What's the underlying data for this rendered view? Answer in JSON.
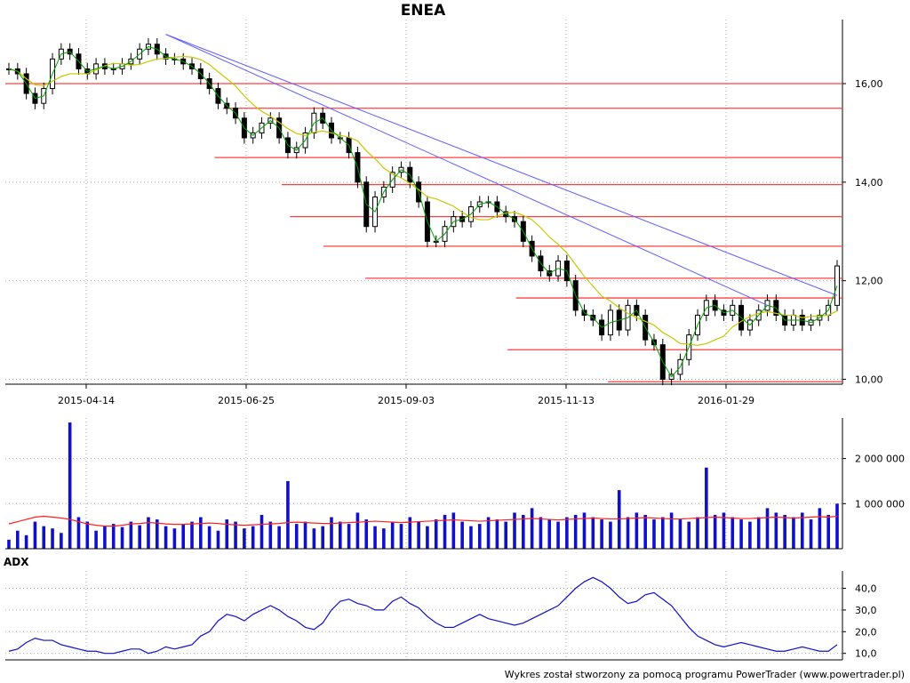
{
  "title": "ENEA",
  "footer": "Wykres został stworzony za pomocą programu PowerTrader (www.powertrader.pl)",
  "colors": {
    "candle": "#000000",
    "ma": "#c8c800",
    "ma_short": "#00a000",
    "trendline": "#6060ff",
    "level": "#ff4040",
    "volume": "#1010c8",
    "volume_ma": "#ff2020",
    "adx": "#1010c8",
    "grid": "#b0b0b0"
  },
  "chart_data": [
    {
      "type": "line",
      "name": "price",
      "title": "ENEA",
      "x_ticks": [
        "2015-04-14",
        "2015-06-25",
        "2015-09-03",
        "2015-11-13",
        "2016-01-29"
      ],
      "y_ticks": [
        "16,00",
        "14,00",
        "12,00",
        "10,00"
      ],
      "ylim": [
        9.9,
        17.3
      ],
      "grid": true,
      "series": [
        {
          "values": [
            16.3,
            16.2,
            15.8,
            15.6,
            15.9,
            16.5,
            16.7,
            16.6,
            16.3,
            16.2,
            16.4,
            16.3,
            16.3,
            16.4,
            16.5,
            16.7,
            16.8,
            16.6,
            16.5,
            16.5,
            16.4,
            16.3,
            16.1,
            15.9,
            15.6,
            15.5,
            15.3,
            14.9,
            15.0,
            15.2,
            15.3,
            14.9,
            14.6,
            14.7,
            15.0,
            15.4,
            15.2,
            14.9,
            14.9,
            14.6,
            14.0,
            13.1,
            13.7,
            13.9,
            14.2,
            14.3,
            14.0,
            13.6,
            12.8,
            12.8,
            13.1,
            13.3,
            13.2,
            13.5,
            13.6,
            13.6,
            13.4,
            13.3,
            13.2,
            12.8,
            12.5,
            12.2,
            12.1,
            12.4,
            12.0,
            11.4,
            11.3,
            11.2,
            10.9,
            11.4,
            11.0,
            11.5,
            11.3,
            10.8,
            10.7,
            10.0,
            10.1,
            10.4,
            10.9,
            11.3,
            11.6,
            11.4,
            11.3,
            11.5,
            11.0,
            11.2,
            11.4,
            11.6,
            11.3,
            11.1,
            11.3,
            11.1,
            11.2,
            11.3,
            11.5,
            12.3
          ]
        }
      ],
      "levels": [
        16.0,
        15.5,
        14.5,
        13.95,
        13.3,
        12.7,
        12.05,
        11.65,
        10.6,
        9.95
      ]
    },
    {
      "type": "bar",
      "name": "volume",
      "y_ticks": [
        "2 000 000",
        "1 000 000"
      ],
      "ylim": [
        0,
        2900000
      ],
      "grid": true,
      "series": [
        {
          "values": [
            200000,
            400000,
            300000,
            600000,
            500000,
            450000,
            350000,
            2800000,
            700000,
            600000,
            400000,
            500000,
            550000,
            480000,
            600000,
            520000,
            700000,
            650000,
            500000,
            450000,
            550000,
            600000,
            700000,
            500000,
            400000,
            650000,
            600000,
            450000,
            500000,
            750000,
            600000,
            500000,
            1500000,
            550000,
            600000,
            450000,
            500000,
            700000,
            600000,
            550000,
            800000,
            650000,
            500000,
            450000,
            600000,
            550000,
            700000,
            600000,
            500000,
            650000,
            750000,
            800000,
            600000,
            500000,
            550000,
            700000,
            650000,
            600000,
            800000,
            750000,
            900000,
            700000,
            650000,
            600000,
            700000,
            750000,
            800000,
            700000,
            650000,
            600000,
            1300000,
            700000,
            800000,
            750000,
            650000,
            700000,
            800000,
            650000,
            600000,
            700000,
            1800000,
            750000,
            800000,
            700000,
            650000,
            600000,
            700000,
            900000,
            800000,
            750000,
            700000,
            800000,
            650000,
            900000,
            750000,
            1000000
          ]
        },
        {
          "values": [
            550000,
            600000,
            650000,
            700000,
            720000,
            700000,
            680000,
            650000,
            600000,
            550000,
            520000,
            500000,
            500000,
            520000,
            550000,
            560000,
            580000,
            570000,
            550000,
            540000,
            540000,
            550000,
            560000,
            570000,
            560000,
            540000,
            530000,
            520000,
            530000,
            540000,
            550000,
            560000,
            580000,
            590000,
            580000,
            570000,
            560000,
            560000,
            570000,
            580000,
            590000,
            600000,
            610000,
            600000,
            590000,
            580000,
            590000,
            600000,
            610000,
            620000,
            630000,
            640000,
            630000,
            620000,
            610000,
            620000,
            630000,
            640000,
            650000,
            660000,
            670000,
            660000,
            650000,
            640000,
            650000,
            660000,
            670000,
            680000,
            670000,
            660000,
            660000,
            670000,
            680000,
            690000,
            680000,
            670000,
            660000,
            660000,
            670000,
            680000,
            690000,
            700000,
            690000,
            680000,
            670000,
            670000,
            680000,
            690000,
            700000,
            690000,
            680000,
            690000,
            700000,
            710000,
            700000,
            720000
          ]
        }
      ]
    },
    {
      "type": "line",
      "name": "ADX",
      "title": "ADX",
      "y_ticks": [
        "40,0",
        "30,0",
        "20,0",
        "10,0"
      ],
      "ylim": [
        7,
        48
      ],
      "grid": true,
      "series": [
        {
          "name": "ADX",
          "values": [
            11,
            12,
            15,
            17,
            16,
            16,
            14,
            13,
            12,
            11,
            11,
            10,
            10,
            11,
            12,
            12,
            10,
            11,
            13,
            12,
            13,
            14,
            18,
            20,
            25,
            28,
            27,
            25,
            28,
            30,
            32,
            30,
            27,
            25,
            22,
            21,
            24,
            30,
            34,
            35,
            33,
            32,
            30,
            30,
            34,
            36,
            33,
            31,
            27,
            24,
            22,
            22,
            24,
            26,
            28,
            26,
            25,
            24,
            23,
            24,
            26,
            28,
            30,
            32,
            36,
            40,
            43,
            45,
            43,
            40,
            36,
            33,
            34,
            37,
            38,
            35,
            32,
            27,
            22,
            18,
            16,
            14,
            13,
            14,
            15,
            14,
            13,
            12,
            11,
            11,
            12,
            13,
            12,
            11,
            11,
            14
          ]
        }
      ]
    }
  ]
}
